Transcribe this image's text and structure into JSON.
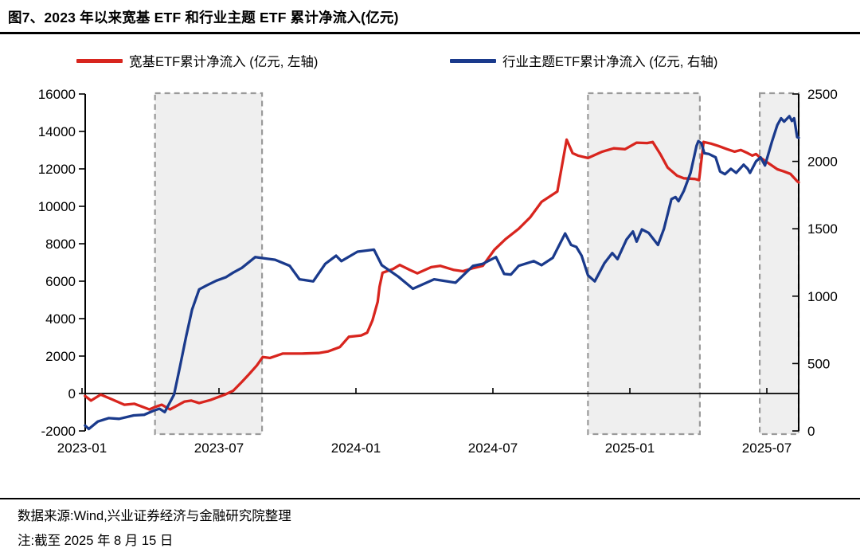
{
  "figure": {
    "title": "图7、2023 年以来宽基 ETF 和行业主题 ETF 累计净流入(亿元)",
    "source_note": "数据来源:Wind,兴业证券经济与金融研究院整理",
    "date_note": "注:截至 2025 年 8 月 15 日"
  },
  "legend": [
    {
      "label": "宽基ETF累计净流入 (亿元, 左轴)",
      "color": "#d8251e"
    },
    {
      "label": "行业主题ETF累计净流入 (亿元, 右轴)",
      "color": "#1a3a8c"
    }
  ],
  "chart_data": {
    "type": "line",
    "title": "图7、2023 年以来宽基 ETF 和行业主题 ETF 累计净流入(亿元)",
    "grid": false,
    "legend_position": "top",
    "colors": {
      "broad_etf": "#d8251e",
      "sector_etf": "#1a3a8c",
      "region_fill": "#efefef",
      "region_border": "#9a9a9a",
      "axis": "#000000"
    },
    "left_axis": {
      "min": -2000,
      "max": 16000,
      "ticks": [
        16000,
        14000,
        12000,
        10000,
        8000,
        6000,
        4000,
        2000,
        0,
        -2000
      ]
    },
    "right_axis": {
      "min": 0,
      "max": 2500,
      "ticks": [
        2500,
        2000,
        1500,
        1000,
        500,
        0
      ]
    },
    "x_axis": {
      "ticks": [
        {
          "label": "2023-01",
          "date": "2023-01-01"
        },
        {
          "label": "2023-07",
          "date": "2023-07-01"
        },
        {
          "label": "2024-01",
          "date": "2024-01-01"
        },
        {
          "label": "2024-07",
          "date": "2024-07-01"
        },
        {
          "label": "2025-01",
          "date": "2025-01-01"
        },
        {
          "label": "2025-07",
          "date": "2025-07-01"
        }
      ]
    },
    "highlight_regions": [
      {
        "start": "2023-04-07",
        "end": "2023-08-28"
      },
      {
        "start": "2024-11-06",
        "end": "2025-04-03"
      },
      {
        "start": "2025-06-22",
        "end": "2025-08-15"
      }
    ],
    "series": [
      {
        "name": "宽基ETF累计净流入 (亿元, 左轴)",
        "axis": "left",
        "color": "#d8251e",
        "points": [
          [
            "2023-01-05",
            -130
          ],
          [
            "2023-01-13",
            -380
          ],
          [
            "2023-01-26",
            -60
          ],
          [
            "2023-02-10",
            -300
          ],
          [
            "2023-02-27",
            -600
          ],
          [
            "2023-03-10",
            -550
          ],
          [
            "2023-03-20",
            -700
          ],
          [
            "2023-03-30",
            -850
          ],
          [
            "2023-04-07",
            -720
          ],
          [
            "2023-04-16",
            -600
          ],
          [
            "2023-04-27",
            -850
          ],
          [
            "2023-05-16",
            -430
          ],
          [
            "2023-05-25",
            -380
          ],
          [
            "2023-06-05",
            -510
          ],
          [
            "2023-06-20",
            -350
          ],
          [
            "2023-07-10",
            -40
          ],
          [
            "2023-07-20",
            150
          ],
          [
            "2023-07-31",
            600
          ],
          [
            "2023-08-10",
            1000
          ],
          [
            "2023-08-21",
            1500
          ],
          [
            "2023-08-29",
            1950
          ],
          [
            "2023-09-08",
            1900
          ],
          [
            "2023-09-25",
            2130
          ],
          [
            "2023-10-20",
            2130
          ],
          [
            "2023-11-12",
            2160
          ],
          [
            "2023-11-25",
            2250
          ],
          [
            "2023-12-10",
            2480
          ],
          [
            "2023-12-22",
            3030
          ],
          [
            "2024-01-08",
            3100
          ],
          [
            "2024-01-16",
            3250
          ],
          [
            "2024-01-23",
            3900
          ],
          [
            "2024-01-30",
            4900
          ],
          [
            "2024-02-02",
            5700
          ],
          [
            "2024-02-06",
            6450
          ],
          [
            "2024-02-20",
            6650
          ],
          [
            "2024-02-29",
            6870
          ],
          [
            "2024-03-12",
            6600
          ],
          [
            "2024-03-22",
            6420
          ],
          [
            "2024-04-10",
            6750
          ],
          [
            "2024-04-22",
            6820
          ],
          [
            "2024-05-10",
            6600
          ],
          [
            "2024-05-22",
            6530
          ],
          [
            "2024-06-05",
            6700
          ],
          [
            "2024-06-18",
            6820
          ],
          [
            "2024-07-03",
            7680
          ],
          [
            "2024-07-18",
            8250
          ],
          [
            "2024-08-05",
            8800
          ],
          [
            "2024-08-20",
            9400
          ],
          [
            "2024-09-05",
            10240
          ],
          [
            "2024-09-18",
            10580
          ],
          [
            "2024-09-26",
            10790
          ],
          [
            "2024-10-08",
            13560
          ],
          [
            "2024-10-16",
            12840
          ],
          [
            "2024-10-23",
            12710
          ],
          [
            "2024-11-06",
            12580
          ],
          [
            "2024-11-25",
            12920
          ],
          [
            "2024-12-10",
            13100
          ],
          [
            "2024-12-25",
            13050
          ],
          [
            "2025-01-10",
            13400
          ],
          [
            "2025-01-24",
            13380
          ],
          [
            "2025-02-01",
            13440
          ],
          [
            "2025-02-11",
            12800
          ],
          [
            "2025-02-21",
            12070
          ],
          [
            "2025-03-03",
            11640
          ],
          [
            "2025-03-12",
            11500
          ],
          [
            "2025-03-27",
            11460
          ],
          [
            "2025-04-02",
            11400
          ],
          [
            "2025-04-08",
            13440
          ],
          [
            "2025-04-18",
            13350
          ],
          [
            "2025-04-28",
            13220
          ],
          [
            "2025-05-09",
            13050
          ],
          [
            "2025-05-19",
            12920
          ],
          [
            "2025-05-27",
            13010
          ],
          [
            "2025-06-06",
            12840
          ],
          [
            "2025-06-12",
            12710
          ],
          [
            "2025-06-17",
            12790
          ],
          [
            "2025-06-22",
            12620
          ],
          [
            "2025-07-04",
            12280
          ],
          [
            "2025-07-15",
            11980
          ],
          [
            "2025-07-24",
            11860
          ],
          [
            "2025-08-02",
            11730
          ],
          [
            "2025-08-11",
            11340
          ],
          [
            "2025-08-15",
            11280
          ]
        ]
      },
      {
        "name": "行业主题ETF累计净流入 (亿元, 右轴)",
        "axis": "right",
        "color": "#1a3a8c",
        "points": [
          [
            "2023-01-05",
            40
          ],
          [
            "2023-01-10",
            15
          ],
          [
            "2023-01-22",
            70
          ],
          [
            "2023-02-06",
            95
          ],
          [
            "2023-02-20",
            90
          ],
          [
            "2023-03-09",
            115
          ],
          [
            "2023-03-23",
            120
          ],
          [
            "2023-04-05",
            150
          ],
          [
            "2023-04-13",
            165
          ],
          [
            "2023-04-20",
            140
          ],
          [
            "2023-05-02",
            270
          ],
          [
            "2023-05-10",
            480
          ],
          [
            "2023-05-18",
            700
          ],
          [
            "2023-05-26",
            900
          ],
          [
            "2023-06-05",
            1050
          ],
          [
            "2023-06-15",
            1080
          ],
          [
            "2023-06-28",
            1115
          ],
          [
            "2023-07-10",
            1140
          ],
          [
            "2023-07-20",
            1175
          ],
          [
            "2023-08-01",
            1210
          ],
          [
            "2023-08-19",
            1290
          ],
          [
            "2023-09-01",
            1280
          ],
          [
            "2023-09-15",
            1270
          ],
          [
            "2023-10-04",
            1225
          ],
          [
            "2023-10-17",
            1125
          ],
          [
            "2023-11-05",
            1110
          ],
          [
            "2023-11-21",
            1240
          ],
          [
            "2023-12-05",
            1300
          ],
          [
            "2023-12-12",
            1260
          ],
          [
            "2024-01-03",
            1330
          ],
          [
            "2024-01-25",
            1345
          ],
          [
            "2024-02-05",
            1230
          ],
          [
            "2024-02-27",
            1145
          ],
          [
            "2024-03-16",
            1055
          ],
          [
            "2024-04-14",
            1125
          ],
          [
            "2024-05-12",
            1100
          ],
          [
            "2024-06-05",
            1225
          ],
          [
            "2024-06-18",
            1240
          ],
          [
            "2024-07-05",
            1290
          ],
          [
            "2024-07-16",
            1165
          ],
          [
            "2024-07-25",
            1160
          ],
          [
            "2024-08-05",
            1225
          ],
          [
            "2024-08-25",
            1260
          ],
          [
            "2024-09-05",
            1230
          ],
          [
            "2024-09-20",
            1285
          ],
          [
            "2024-10-06",
            1465
          ],
          [
            "2024-10-14",
            1380
          ],
          [
            "2024-10-21",
            1365
          ],
          [
            "2024-10-28",
            1300
          ],
          [
            "2024-11-06",
            1155
          ],
          [
            "2024-11-15",
            1110
          ],
          [
            "2024-11-28",
            1245
          ],
          [
            "2024-12-08",
            1320
          ],
          [
            "2024-12-15",
            1275
          ],
          [
            "2024-12-27",
            1420
          ],
          [
            "2025-01-05",
            1480
          ],
          [
            "2025-01-10",
            1405
          ],
          [
            "2025-01-17",
            1495
          ],
          [
            "2025-01-26",
            1470
          ],
          [
            "2025-02-08",
            1380
          ],
          [
            "2025-02-16",
            1500
          ],
          [
            "2025-02-26",
            1720
          ],
          [
            "2025-03-01",
            1735
          ],
          [
            "2025-03-05",
            1705
          ],
          [
            "2025-03-12",
            1780
          ],
          [
            "2025-03-21",
            1915
          ],
          [
            "2025-03-29",
            2115
          ],
          [
            "2025-04-01",
            2150
          ],
          [
            "2025-04-05",
            2135
          ],
          [
            "2025-04-09",
            2060
          ],
          [
            "2025-04-15",
            2055
          ],
          [
            "2025-04-24",
            2030
          ],
          [
            "2025-04-30",
            1925
          ],
          [
            "2025-05-06",
            1905
          ],
          [
            "2025-05-14",
            1945
          ],
          [
            "2025-05-21",
            1915
          ],
          [
            "2025-05-31",
            1975
          ],
          [
            "2025-06-06",
            1945
          ],
          [
            "2025-06-09",
            1915
          ],
          [
            "2025-06-17",
            2000
          ],
          [
            "2025-06-23",
            2030
          ],
          [
            "2025-06-29",
            1970
          ],
          [
            "2025-07-08",
            2150
          ],
          [
            "2025-07-15",
            2270
          ],
          [
            "2025-07-20",
            2320
          ],
          [
            "2025-07-24",
            2295
          ],
          [
            "2025-07-31",
            2335
          ],
          [
            "2025-08-04",
            2300
          ],
          [
            "2025-08-07",
            2320
          ],
          [
            "2025-08-11",
            2180
          ],
          [
            "2025-08-15",
            2175
          ]
        ]
      }
    ]
  }
}
